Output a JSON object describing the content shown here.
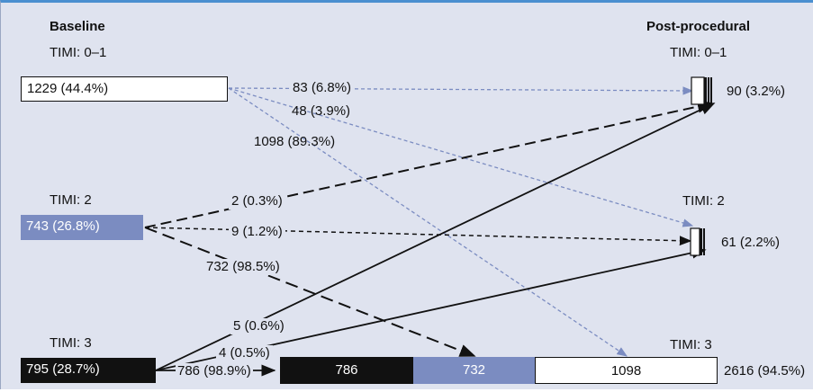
{
  "headers": {
    "baseline": "Baseline",
    "post": "Post-procedural"
  },
  "baseline": {
    "timi01": {
      "label": "TIMI: 0–1",
      "value": "1229 (44.4%)"
    },
    "timi2": {
      "label": "TIMI: 2",
      "value": "743 (26.8%)"
    },
    "timi3": {
      "label": "TIMI: 3",
      "value": "795 (28.7%)"
    }
  },
  "post": {
    "timi01": {
      "label": "TIMI: 0–1",
      "value": "90 (3.2%)"
    },
    "timi2": {
      "label": "TIMI: 2",
      "value": "61 (2.2%)"
    },
    "timi3": {
      "label": "TIMI: 3",
      "value": "2616 (94.5%)",
      "segments": [
        "786",
        "732",
        "1098"
      ]
    }
  },
  "flows": {
    "from01_to01": "83 (6.8%)",
    "from01_to2": "48 (3.9%)",
    "from01_to3": "1098 (89.3%)",
    "from2_to01": "2 (0.3%)",
    "from2_to2": "9 (1.2%)",
    "from2_to3": "732 (98.5%)",
    "from3_to01": "5 (0.6%)",
    "from3_to2": "4 (0.5%)",
    "from3_to3": "786 (98.9%)"
  },
  "colors": {
    "background": "#dfe3ef",
    "blue": "#7b8cc1",
    "black": "#111111",
    "border": "#4a8fd0"
  }
}
